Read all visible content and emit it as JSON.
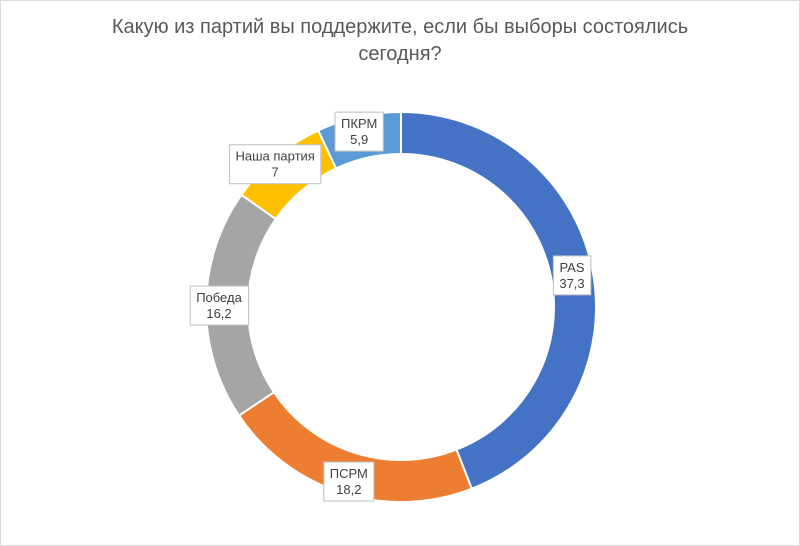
{
  "chart_data": {
    "type": "pie",
    "variant": "doughnut",
    "title": "Какую из партий вы поддержите, если бы выборы состоялись\nсегодня?",
    "categories": [
      "PAS",
      "ПСРМ",
      "Победа",
      "Наша партия",
      "ПКРМ"
    ],
    "values": [
      37.3,
      18.2,
      16.2,
      7,
      5.9
    ],
    "value_labels": [
      "37,3",
      "18,2",
      "16,2",
      "7",
      "5,9"
    ],
    "colors": [
      "#4472c4",
      "#ed7d31",
      "#a5a5a5",
      "#ffc000",
      "#5b9bd5"
    ],
    "legend": "none"
  }
}
